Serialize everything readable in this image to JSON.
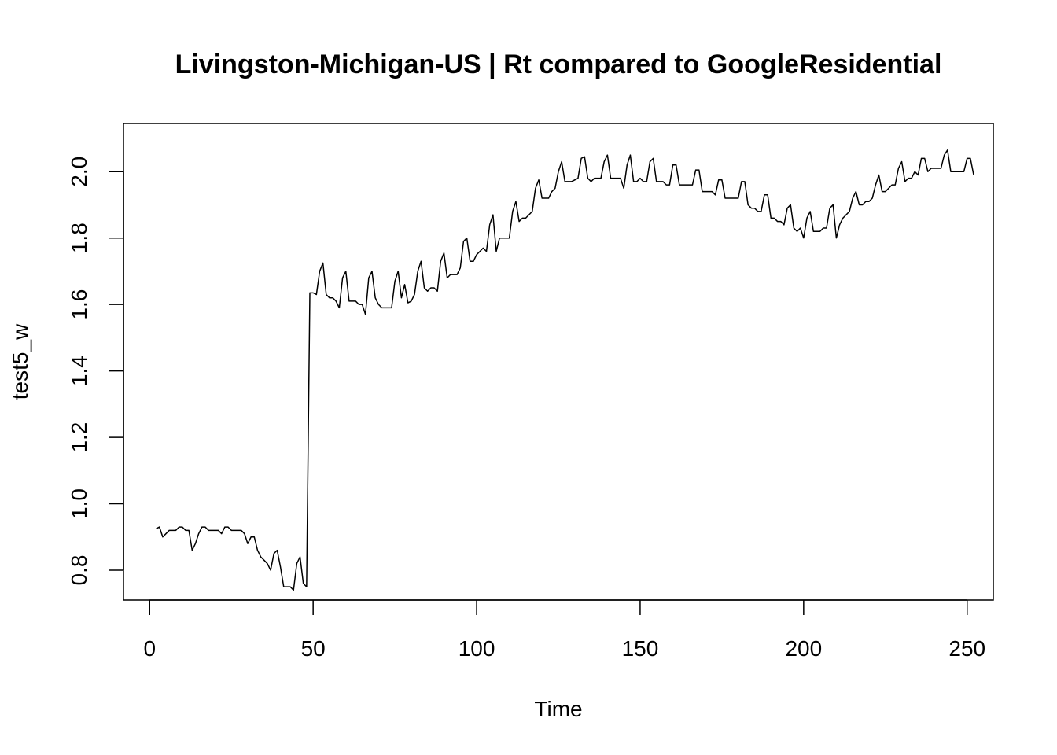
{
  "chart_data": {
    "type": "line",
    "title": "Livingston-Michigan-US | Rt compared to GoogleResidential",
    "xlabel": "Time",
    "ylabel": "test5_w",
    "xlim": [
      -8,
      258
    ],
    "ylim": [
      0.71,
      2.145
    ],
    "xticks": [
      0,
      50,
      100,
      150,
      200,
      250
    ],
    "yticks": [
      0.8,
      1.0,
      1.2,
      1.4,
      1.6,
      1.8,
      2.0
    ],
    "xtick_labels": [
      "0",
      "50",
      "100",
      "150",
      "200",
      "250"
    ],
    "ytick_labels": [
      "0.8",
      "1.0",
      "1.2",
      "1.4",
      "1.6",
      "1.8",
      "2.0"
    ],
    "grid": false,
    "legend": "none",
    "series": [
      {
        "x_start": 2,
        "values": [
          0.925,
          0.93,
          0.9,
          0.91,
          0.92,
          0.92,
          0.92,
          0.93,
          0.93,
          0.92,
          0.92,
          0.86,
          0.88,
          0.91,
          0.93,
          0.93,
          0.92,
          0.92,
          0.92,
          0.92,
          0.91,
          0.93,
          0.93,
          0.92,
          0.92,
          0.92,
          0.92,
          0.91,
          0.88,
          0.9,
          0.9,
          0.86,
          0.84,
          0.83,
          0.82,
          0.8,
          0.85,
          0.86,
          0.81,
          0.75,
          0.75,
          0.75,
          0.74,
          0.82,
          0.84,
          0.76,
          0.75,
          1.635,
          1.635,
          1.63,
          1.7,
          1.725,
          1.63,
          1.62,
          1.62,
          1.61,
          1.59,
          1.68,
          1.7,
          1.61,
          1.61,
          1.61,
          1.6,
          1.6,
          1.57,
          1.68,
          1.7,
          1.62,
          1.6,
          1.59,
          1.59,
          1.59,
          1.59,
          1.67,
          1.7,
          1.62,
          1.66,
          1.605,
          1.61,
          1.63,
          1.7,
          1.73,
          1.65,
          1.64,
          1.65,
          1.65,
          1.64,
          1.73,
          1.755,
          1.68,
          1.69,
          1.69,
          1.69,
          1.71,
          1.79,
          1.8,
          1.73,
          1.73,
          1.75,
          1.76,
          1.77,
          1.76,
          1.84,
          1.87,
          1.76,
          1.8,
          1.8,
          1.8,
          1.8,
          1.88,
          1.91,
          1.85,
          1.86,
          1.86,
          1.87,
          1.88,
          1.95,
          1.975,
          1.92,
          1.92,
          1.92,
          1.94,
          1.95,
          2.0,
          2.03,
          1.97,
          1.97,
          1.97,
          1.975,
          1.98,
          2.04,
          2.045,
          1.98,
          1.97,
          1.98,
          1.98,
          1.98,
          2.03,
          2.05,
          1.98,
          1.98,
          1.98,
          1.98,
          1.95,
          2.02,
          2.05,
          1.97,
          1.97,
          1.98,
          1.97,
          1.97,
          2.03,
          2.04,
          1.97,
          1.97,
          1.97,
          1.96,
          1.96,
          2.02,
          2.02,
          1.96,
          1.96,
          1.96,
          1.96,
          1.96,
          2.005,
          2.005,
          1.94,
          1.94,
          1.94,
          1.94,
          1.93,
          1.975,
          1.975,
          1.92,
          1.92,
          1.92,
          1.92,
          1.92,
          1.97,
          1.97,
          1.9,
          1.89,
          1.89,
          1.88,
          1.88,
          1.93,
          1.93,
          1.86,
          1.86,
          1.85,
          1.85,
          1.84,
          1.89,
          1.9,
          1.83,
          1.82,
          1.83,
          1.8,
          1.86,
          1.88,
          1.82,
          1.82,
          1.82,
          1.83,
          1.83,
          1.89,
          1.9,
          1.8,
          1.84,
          1.86,
          1.87,
          1.88,
          1.92,
          1.94,
          1.9,
          1.9,
          1.91,
          1.91,
          1.92,
          1.96,
          1.99,
          1.94,
          1.94,
          1.95,
          1.96,
          1.96,
          2.01,
          2.03,
          1.97,
          1.98,
          1.98,
          2.0,
          1.99,
          2.04,
          2.04,
          2.0,
          2.01,
          2.01,
          2.01,
          2.01,
          2.05,
          2.065,
          2.0,
          2.0,
          2.0,
          2.0,
          2.0,
          2.04,
          2.04,
          1.99
        ]
      }
    ]
  }
}
